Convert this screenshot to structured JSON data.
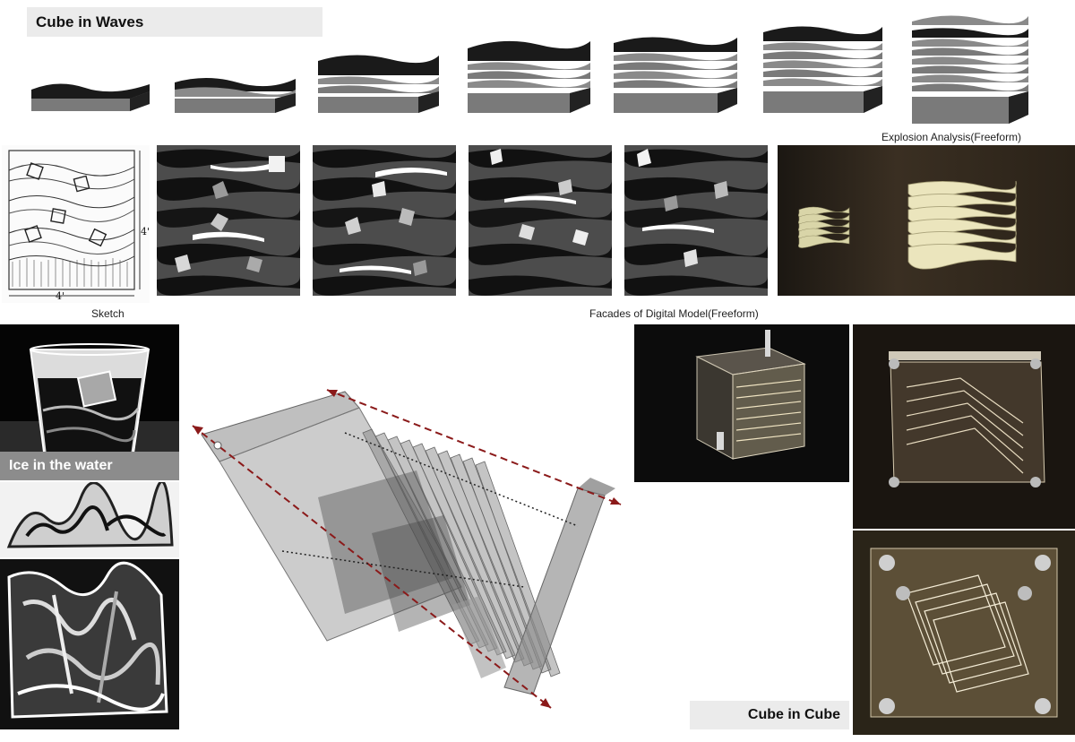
{
  "board": {
    "title": "Cube in Waves",
    "captions": {
      "explosion": "Explosion Analysis(Freeform)",
      "sketch": "Sketch",
      "facades": "Facades of Digital Model(Freeform)",
      "ice": "Ice in the water",
      "cube_in_cube": "Cube in Cube"
    },
    "sketch_dimensions": {
      "height": "4'",
      "width": "4'"
    },
    "explosion_steps": [
      1,
      2,
      3,
      4,
      5,
      6,
      7
    ]
  }
}
